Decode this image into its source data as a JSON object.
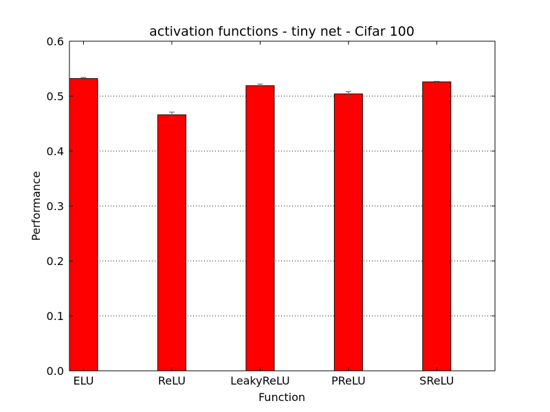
{
  "chart_data": {
    "type": "bar",
    "title": "activation functions - tiny net - Cifar 100",
    "xlabel": "Function",
    "ylabel": "Performance",
    "categories": [
      "ELU",
      "ReLU",
      "LeakyReLU",
      "PReLU",
      "SReLU"
    ],
    "values": [
      0.532,
      0.466,
      0.519,
      0.504,
      0.526
    ],
    "errors": [
      0.002,
      0.005,
      0.003,
      0.004,
      0.001
    ],
    "ylim": [
      0,
      0.6
    ],
    "yticks": [
      "0.0",
      "0.1",
      "0.2",
      "0.3",
      "0.4",
      "0.5",
      "0.6"
    ],
    "grid": "y-dotted",
    "bar_color": "#ff0000"
  }
}
